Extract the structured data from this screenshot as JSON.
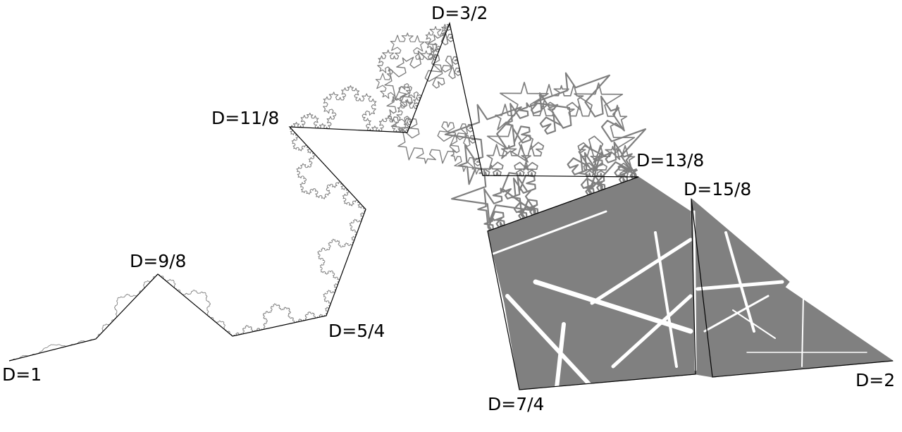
{
  "diagram": {
    "labels": [
      "D=1",
      "D=9/8",
      "D=5/4",
      "D=11/8",
      "D=3/2",
      "D=13/8",
      "D=7/4",
      "D=15/8",
      "D=2"
    ]
  },
  "colors": {
    "background": "#ffffff",
    "line": "#000000",
    "fractal": "#7f7f7f"
  }
}
